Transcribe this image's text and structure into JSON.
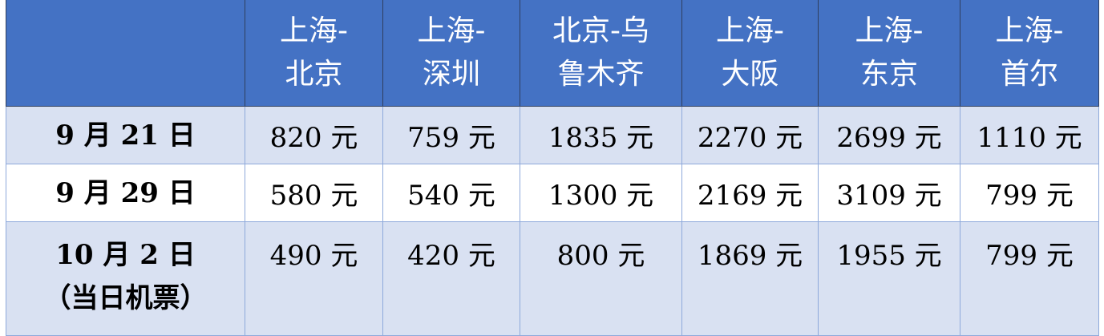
{
  "table": {
    "header_colors": {
      "header_bg": "#4472C4",
      "alt_row_bg": "#D9E1F2",
      "border": "#8EA9DB"
    },
    "columns": [
      "",
      "上海-北京",
      "上海-深圳",
      "北京-乌鲁木齐",
      "上海-大阪",
      "上海-东京",
      "上海-首尔"
    ],
    "rows": [
      {
        "date": "9 月 21 日",
        "cells": [
          "820 元",
          "759 元",
          "1835 元",
          "2270 元",
          "2699 元",
          "1110 元"
        ]
      },
      {
        "date": "9 月 29 日",
        "cells": [
          "580 元",
          "540 元",
          "1300 元",
          "2169 元",
          "3109 元",
          "799 元"
        ]
      },
      {
        "date": "10 月 2 日",
        "note": "（当日机票）",
        "cells": [
          "490 元",
          "420 元",
          "800 元",
          "1869 元",
          "1955 元",
          "799 元"
        ]
      }
    ]
  }
}
